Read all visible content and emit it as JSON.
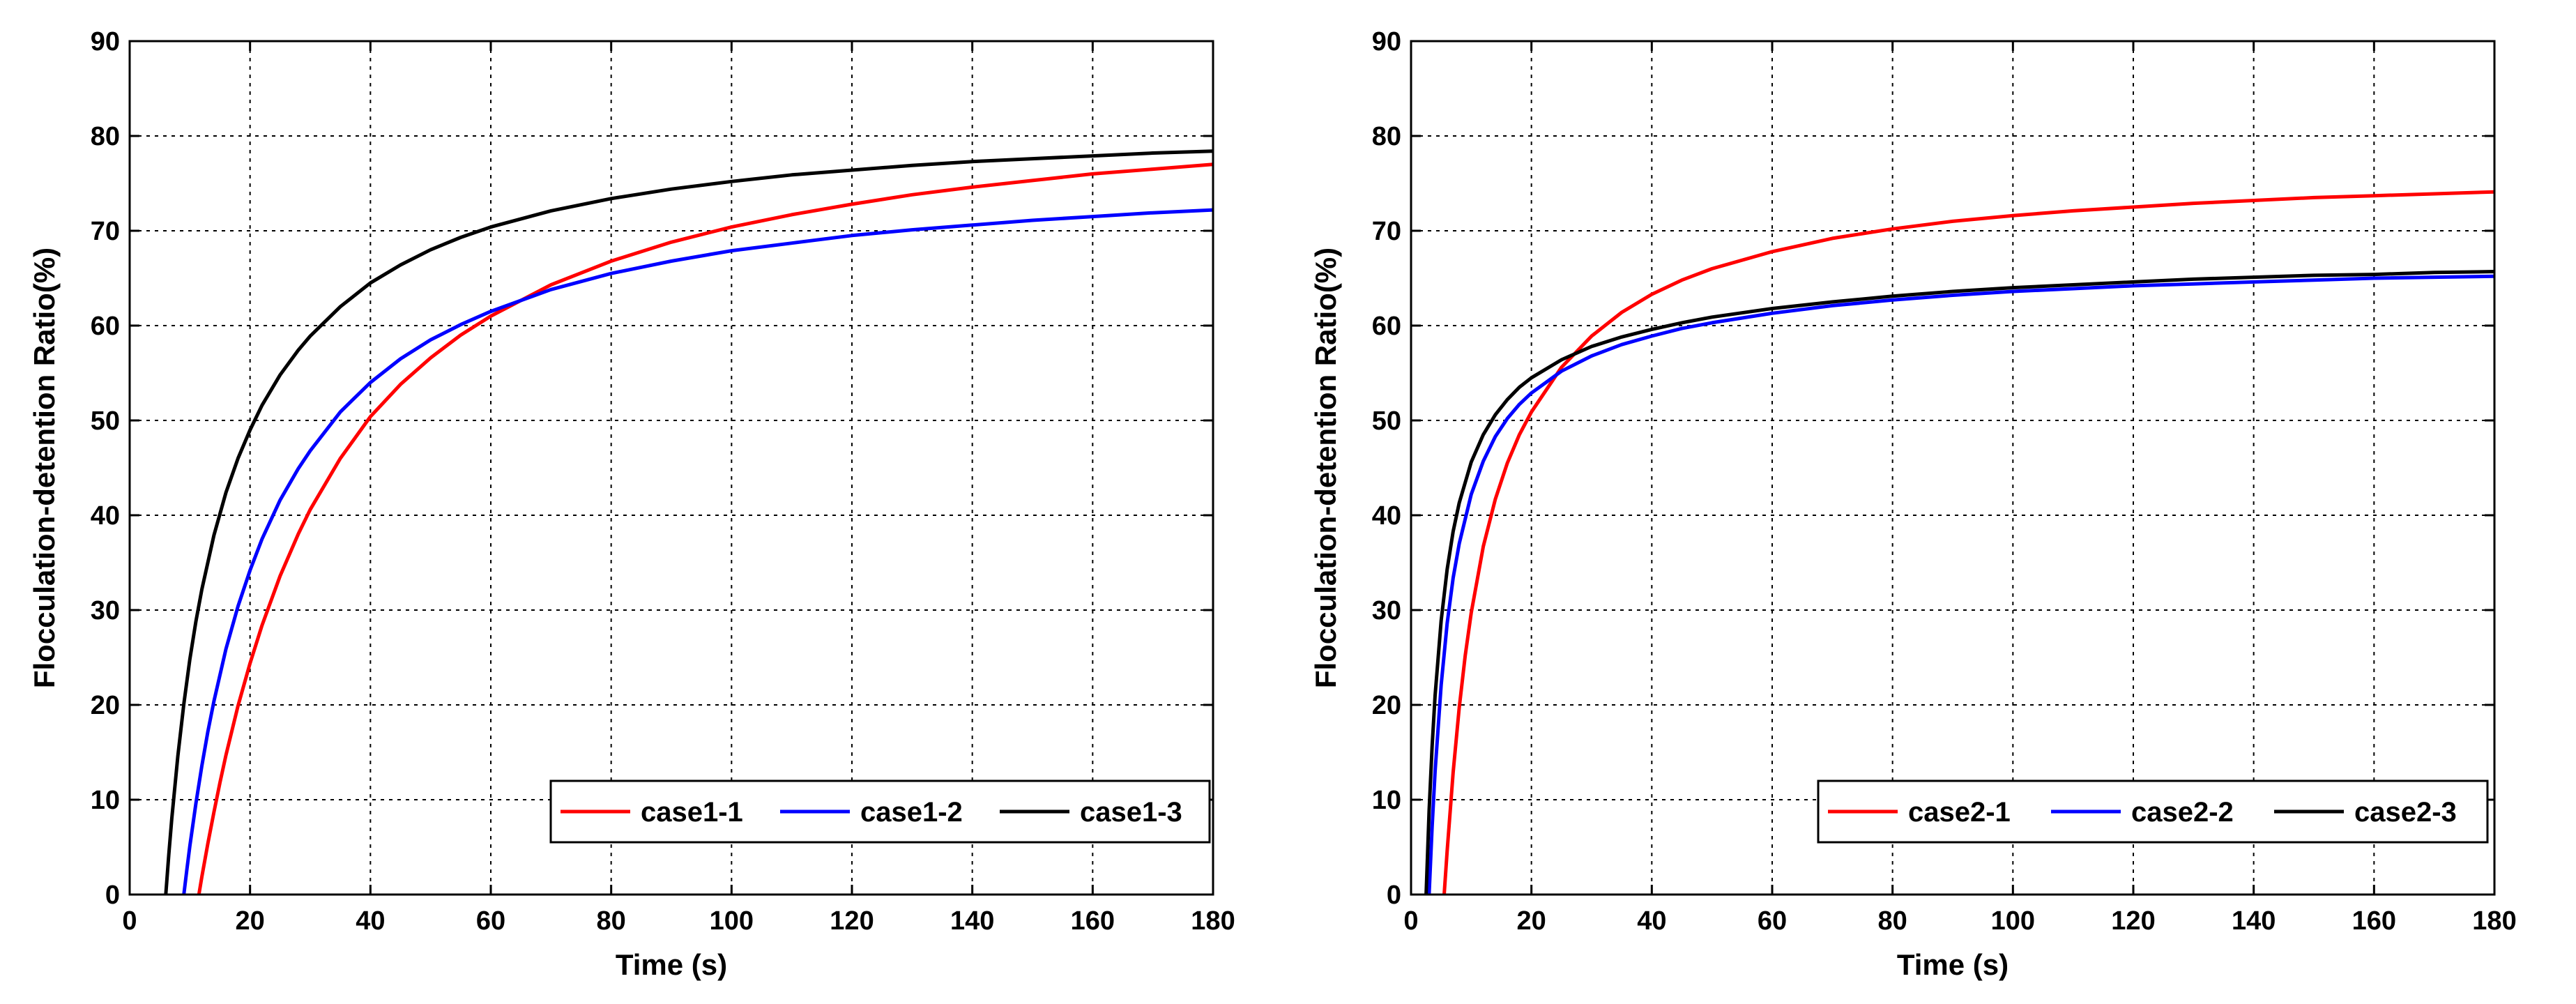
{
  "chart_data": [
    {
      "type": "line",
      "title": "",
      "xlabel": "Time (s)",
      "ylabel": "Flocculation-detention Ratio(%)",
      "xlim": [
        0,
        180
      ],
      "ylim": [
        0,
        90
      ],
      "xticks": [
        0,
        20,
        40,
        60,
        80,
        100,
        120,
        140,
        160,
        180
      ],
      "yticks": [
        0,
        10,
        20,
        30,
        40,
        50,
        60,
        70,
        80,
        90
      ],
      "grid": true,
      "legend_position": "bottom-right",
      "series": [
        {
          "name": "case1-1",
          "color": "#ff0000",
          "x": [
            11.5,
            12,
            13,
            14,
            15,
            16,
            18,
            20,
            22,
            25,
            28,
            30,
            35,
            40,
            45,
            50,
            55,
            60,
            70,
            80,
            90,
            100,
            110,
            120,
            130,
            140,
            150,
            160,
            170,
            180
          ],
          "y": [
            0,
            1.9,
            5.4,
            8.7,
            11.8,
            14.7,
            19.9,
            24.4,
            28.4,
            33.6,
            38.0,
            40.6,
            46.0,
            50.4,
            53.8,
            56.6,
            59.0,
            61.0,
            64.3,
            66.8,
            68.8,
            70.4,
            71.7,
            72.8,
            73.8,
            74.6,
            75.3,
            76.0,
            76.5,
            77.0
          ]
        },
        {
          "name": "case1-2",
          "color": "#0000ff",
          "x": [
            9,
            9.5,
            10,
            11,
            12,
            13,
            14,
            16,
            18,
            20,
            22,
            25,
            28,
            30,
            35,
            40,
            45,
            50,
            55,
            60,
            70,
            80,
            90,
            100,
            110,
            120,
            130,
            140,
            150,
            160,
            170,
            180
          ],
          "y": [
            0,
            2.6,
            5.1,
            9.6,
            13.6,
            17.2,
            20.4,
            25.9,
            30.4,
            34.2,
            37.5,
            41.6,
            44.9,
            46.8,
            50.9,
            54.0,
            56.5,
            58.5,
            60.1,
            61.5,
            63.8,
            65.5,
            66.8,
            67.9,
            68.7,
            69.5,
            70.1,
            70.6,
            71.1,
            71.5,
            71.9,
            72.2
          ]
        },
        {
          "name": "case1-3",
          "color": "#000000",
          "x": [
            6,
            6.5,
            7,
            8,
            9,
            10,
            11,
            12,
            14,
            16,
            18,
            20,
            22,
            25,
            28,
            30,
            35,
            40,
            45,
            50,
            55,
            60,
            70,
            80,
            90,
            100,
            110,
            120,
            130,
            140,
            150,
            160,
            170,
            180
          ],
          "y": [
            0,
            4.2,
            8.0,
            14.6,
            20.1,
            24.8,
            28.8,
            32.2,
            37.9,
            42.4,
            46.0,
            49.0,
            51.6,
            54.8,
            57.4,
            58.9,
            62.0,
            64.5,
            66.4,
            68.0,
            69.3,
            70.4,
            72.1,
            73.4,
            74.4,
            75.2,
            75.9,
            76.4,
            76.9,
            77.3,
            77.6,
            77.9,
            78.2,
            78.4
          ]
        }
      ]
    },
    {
      "type": "line",
      "title": "",
      "xlabel": "Time (s)",
      "ylabel": "Flocculation-detention Ratio(%)",
      "xlim": [
        0,
        180
      ],
      "ylim": [
        0,
        90
      ],
      "xticks": [
        0,
        20,
        40,
        60,
        80,
        100,
        120,
        140,
        160,
        180
      ],
      "yticks": [
        0,
        10,
        20,
        30,
        40,
        50,
        60,
        70,
        80,
        90
      ],
      "grid": true,
      "legend_position": "bottom-right",
      "series": [
        {
          "name": "case2-1",
          "color": "#ff0000",
          "x": [
            5.5,
            6,
            7,
            8,
            9,
            10,
            12,
            14,
            16,
            18,
            20,
            25,
            30,
            35,
            40,
            45,
            50,
            60,
            70,
            80,
            90,
            100,
            110,
            120,
            130,
            140,
            150,
            160,
            170,
            180
          ],
          "y": [
            0,
            4.6,
            12.9,
            19.7,
            25.2,
            29.7,
            36.7,
            41.7,
            45.5,
            48.5,
            50.9,
            55.6,
            58.9,
            61.4,
            63.3,
            64.8,
            66.0,
            67.8,
            69.2,
            70.2,
            71.0,
            71.6,
            72.1,
            72.5,
            72.9,
            73.2,
            73.5,
            73.7,
            73.9,
            74.1
          ]
        },
        {
          "name": "case2-2",
          "color": "#0000ff",
          "x": [
            3,
            3.5,
            4,
            5,
            6,
            7,
            8,
            10,
            12,
            14,
            16,
            18,
            20,
            25,
            30,
            35,
            40,
            45,
            50,
            60,
            70,
            80,
            90,
            100,
            110,
            120,
            130,
            140,
            150,
            160,
            170,
            180
          ],
          "y": [
            0,
            7.1,
            13.0,
            22.1,
            28.6,
            33.4,
            37.0,
            42.2,
            45.7,
            48.3,
            50.2,
            51.7,
            52.9,
            55.2,
            56.8,
            58.0,
            58.9,
            59.7,
            60.3,
            61.3,
            62.1,
            62.7,
            63.2,
            63.6,
            63.9,
            64.2,
            64.4,
            64.6,
            64.8,
            65.0,
            65.1,
            65.2
          ]
        },
        {
          "name": "case2-3",
          "color": "#000000",
          "x": [
            2.5,
            3,
            3.5,
            4,
            5,
            6,
            7,
            8,
            10,
            12,
            14,
            16,
            18,
            20,
            25,
            30,
            35,
            40,
            45,
            50,
            60,
            70,
            80,
            90,
            100,
            110,
            120,
            130,
            140,
            150,
            160,
            170,
            180
          ],
          "y": [
            0,
            8.8,
            15.6,
            21.0,
            28.9,
            34.3,
            38.3,
            41.3,
            45.6,
            48.5,
            50.6,
            52.2,
            53.5,
            54.5,
            56.4,
            57.8,
            58.8,
            59.6,
            60.3,
            60.9,
            61.8,
            62.5,
            63.1,
            63.6,
            64.0,
            64.3,
            64.6,
            64.9,
            65.1,
            65.3,
            65.4,
            65.6,
            65.7
          ]
        }
      ]
    }
  ]
}
